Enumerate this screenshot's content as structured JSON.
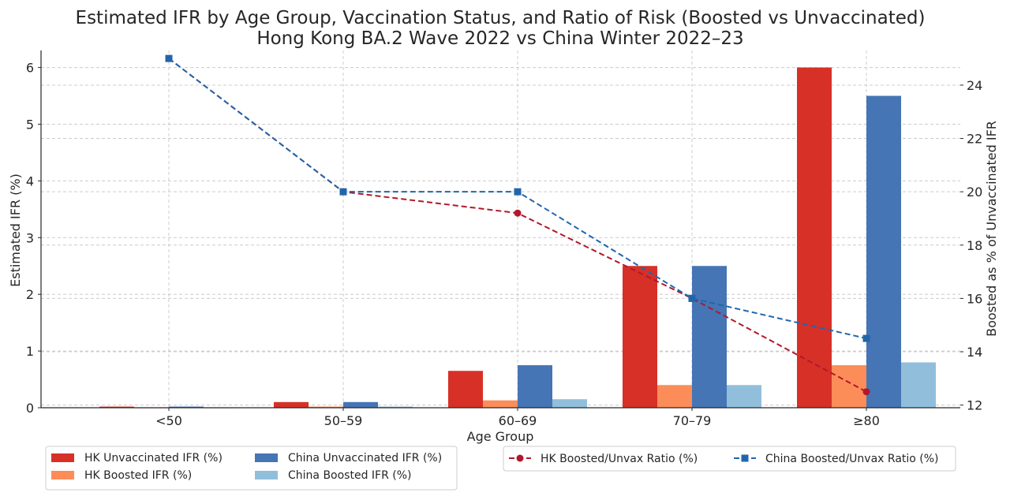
{
  "chart_data": {
    "type": "bar",
    "title_line1": "Estimated IFR by Age Group, Vaccination Status, and Ratio of Risk (Boosted vs Unvaccinated)",
    "title_line2": "Hong Kong BA.2 Wave 2022 vs China Winter 2022–23",
    "xlabel": "Age Group",
    "ylabel": "Estimated IFR (%)",
    "y2label": "Boosted as % of Unvaccinated IFR",
    "categories": [
      "<50",
      "50–59",
      "60–69",
      "70–79",
      "≥80"
    ],
    "ylim": [
      0,
      6.3
    ],
    "yticks": [
      0,
      1,
      2,
      3,
      4,
      5,
      6
    ],
    "y2lim": [
      11.9,
      25.3
    ],
    "y2ticks": [
      12,
      14,
      16,
      18,
      20,
      22,
      24
    ],
    "grid": true,
    "bar_series": [
      {
        "name": "HK Unvaccinated IFR (%)",
        "color": "#d73027",
        "values": [
          0.02,
          0.1,
          0.65,
          2.5,
          6.0
        ]
      },
      {
        "name": "HK Boosted IFR (%)",
        "color": "#fc8d59",
        "values": [
          0.005,
          0.02,
          0.13,
          0.4,
          0.75
        ]
      },
      {
        "name": "China Unvaccinated IFR (%)",
        "color": "#4575b4",
        "values": [
          0.02,
          0.1,
          0.75,
          2.5,
          5.5
        ]
      },
      {
        "name": "China Boosted IFR (%)",
        "color": "#91bfdb",
        "values": [
          0.005,
          0.02,
          0.15,
          0.4,
          0.8
        ]
      }
    ],
    "line_series": [
      {
        "name": "HK Boosted/Unvax Ratio (%)",
        "color": "#b2182b",
        "marker": "circle",
        "axis": "right",
        "values": [
          25,
          20,
          19.2,
          16,
          12.5
        ]
      },
      {
        "name": "China Boosted/Unvax Ratio (%)",
        "color": "#2166ac",
        "marker": "square",
        "axis": "right",
        "values": [
          25,
          20,
          20,
          16,
          14.5
        ]
      }
    ],
    "legend_bars_placement": "bottom-left",
    "legend_lines_placement": "bottom-right"
  }
}
